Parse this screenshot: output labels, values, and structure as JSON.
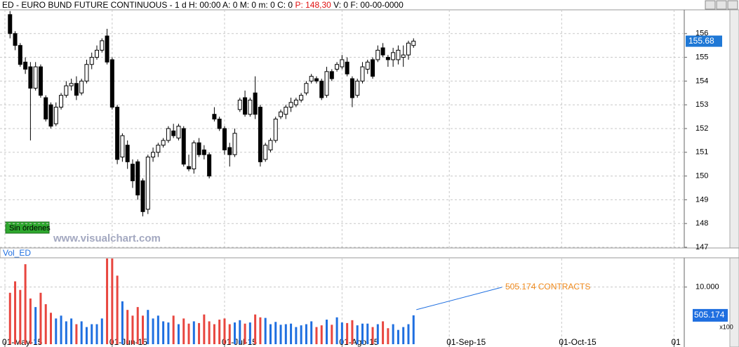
{
  "chart_data": [
    {
      "type": "candlestick",
      "title": "ED - EURO BUND FUTURE CONTINUOUS - 1 d H: 00:00 A: 0 M: 0 m: 0 C: 0",
      "title_price": "P: 148,30",
      "title_rest": "V: 0 F: 00-00-0000",
      "x": [
        1,
        2,
        3,
        4,
        5,
        6,
        7,
        8,
        9,
        10,
        11,
        12,
        13,
        14,
        15,
        16,
        17,
        18,
        19,
        20,
        21,
        22,
        23,
        24,
        25,
        26,
        27,
        28,
        29,
        30,
        31,
        32,
        33,
        34,
        35,
        36,
        37,
        38,
        39,
        40,
        41,
        42,
        43,
        44,
        45,
        46,
        47,
        48,
        49,
        50,
        51,
        52,
        53,
        54,
        55,
        56,
        57,
        58,
        59,
        60,
        61,
        62,
        63,
        64,
        65,
        66,
        67,
        68,
        69,
        70,
        71,
        72,
        73,
        74,
        75,
        76,
        77,
        78,
        79,
        80
      ],
      "open": [
        156.8,
        156.0,
        155.5,
        154.8,
        154.6,
        153.7,
        154.6,
        153.3,
        153.0,
        152.2,
        152.9,
        153.4,
        153.8,
        153.9,
        153.5,
        154.0,
        154.7,
        155.0,
        155.3,
        155.9,
        154.9,
        152.9,
        150.8,
        151.3,
        150.5,
        150.6,
        149.8,
        148.6,
        150.8,
        151.0,
        151.3,
        151.5,
        151.9,
        151.6,
        152.0,
        150.4,
        150.3,
        151.4,
        151.1,
        150.9,
        152.6,
        152.4,
        152.0,
        151.2,
        150.9,
        152.8,
        153.3,
        152.6,
        153.5,
        152.9,
        150.7,
        151.1,
        151.5,
        152.5,
        152.6,
        152.9,
        153.0,
        153.2,
        153.5,
        154.0,
        154.1,
        154.0,
        153.4,
        154.4,
        154.5,
        154.6,
        154.8,
        154.1,
        153.4,
        154.0,
        154.5,
        154.9,
        154.9,
        155.4,
        155.0,
        154.9,
        154.9,
        155.0,
        155.1,
        155.5
      ],
      "high": [
        156.95,
        156.1,
        155.6,
        155.0,
        154.8,
        154.8,
        154.7,
        153.4,
        153.1,
        153.1,
        153.5,
        154.0,
        154.1,
        154.2,
        154.1,
        154.9,
        155.2,
        155.5,
        155.8,
        156.2,
        155.0,
        153.0,
        151.8,
        151.5,
        150.7,
        150.7,
        149.9,
        150.9,
        151.2,
        151.4,
        151.6,
        152.1,
        152.2,
        152.2,
        152.1,
        150.9,
        151.5,
        151.6,
        151.3,
        151.0,
        152.9,
        152.5,
        152.1,
        151.4,
        152.0,
        153.3,
        153.6,
        153.3,
        154.2,
        153.0,
        151.4,
        151.6,
        152.5,
        152.8,
        153.0,
        153.3,
        153.3,
        153.5,
        154.0,
        154.3,
        154.2,
        154.1,
        154.6,
        154.5,
        154.8,
        155.1,
        155.0,
        154.2,
        154.1,
        154.8,
        154.9,
        155.0,
        155.5,
        155.6,
        155.1,
        155.4,
        155.5,
        155.5,
        155.7,
        155.8
      ],
      "low": [
        155.8,
        155.3,
        154.6,
        154.3,
        151.5,
        153.6,
        153.3,
        152.3,
        152.0,
        152.1,
        152.8,
        153.3,
        153.6,
        153.2,
        153.4,
        153.9,
        154.5,
        154.9,
        155.2,
        154.7,
        152.8,
        150.5,
        150.6,
        150.3,
        149.5,
        149.0,
        148.3,
        148.4,
        150.6,
        150.8,
        151.2,
        151.4,
        151.6,
        151.5,
        150.4,
        150.2,
        150.1,
        150.8,
        150.7,
        149.9,
        152.3,
        151.9,
        150.9,
        150.4,
        150.8,
        152.7,
        152.5,
        152.5,
        152.4,
        150.4,
        150.6,
        151.0,
        151.4,
        152.4,
        152.4,
        152.7,
        152.9,
        153.1,
        153.4,
        153.9,
        153.9,
        153.2,
        153.3,
        154.0,
        154.4,
        154.5,
        154.2,
        152.9,
        153.3,
        153.9,
        154.3,
        154.1,
        154.8,
        155.0,
        154.6,
        154.6,
        154.7,
        154.6,
        154.9,
        155.4
      ],
      "close": [
        156.0,
        155.5,
        154.7,
        154.5,
        153.7,
        154.6,
        153.4,
        152.4,
        152.1,
        152.9,
        153.4,
        153.8,
        153.9,
        153.4,
        154.0,
        154.7,
        155.0,
        155.3,
        155.7,
        154.8,
        152.9,
        150.7,
        151.7,
        150.6,
        149.8,
        149.2,
        148.5,
        150.8,
        151.0,
        151.3,
        151.5,
        152.0,
        151.7,
        152.1,
        150.5,
        150.3,
        151.4,
        150.9,
        150.9,
        150.0,
        152.4,
        152.0,
        151.1,
        150.9,
        151.8,
        153.2,
        152.6,
        153.2,
        152.6,
        150.6,
        151.3,
        151.5,
        152.4,
        152.7,
        152.9,
        153.1,
        153.2,
        153.4,
        153.9,
        154.2,
        154.0,
        153.3,
        154.4,
        154.1,
        154.7,
        154.9,
        154.3,
        153.3,
        154.0,
        154.6,
        154.8,
        154.2,
        155.3,
        155.1,
        154.9,
        155.2,
        155.3,
        155.1,
        155.6,
        155.68
      ],
      "xlim": [
        0,
        133
      ],
      "xticks": [
        {
          "value": 0,
          "label": "01-May-15"
        },
        {
          "value": 21,
          "label": "01-Jun-15"
        },
        {
          "value": 43,
          "label": "01-Jul-15"
        },
        {
          "value": 66,
          "label": "01-Ago-15"
        },
        {
          "value": 87,
          "label": "01-Sep-15"
        },
        {
          "value": 109,
          "label": "01-Oct-15"
        },
        {
          "value": 131,
          "label": "01"
        }
      ],
      "ylim": [
        147,
        157
      ],
      "yticks": [
        147,
        148,
        149,
        150,
        151,
        152,
        153,
        154,
        155,
        156
      ],
      "grid": true,
      "up_color": "#ffffff",
      "down_color": "#000000",
      "last_color": "#1f78d6"
    },
    {
      "type": "bar",
      "title": "Vol_ED",
      "values": [
        9000,
        11000,
        9500,
        14000,
        8000,
        6500,
        9000,
        7000,
        5500,
        4500,
        5000,
        4000,
        4500,
        3500,
        4000,
        3000,
        3500,
        3500,
        4500,
        15000,
        15000,
        12000,
        7500,
        6000,
        5000,
        6500,
        5000,
        6000,
        4500,
        5000,
        4000,
        3800,
        5000,
        3500,
        4500,
        3600,
        4000,
        3700,
        5200,
        4000,
        3500,
        4300,
        4500,
        3500,
        3800,
        4200,
        3600,
        3800,
        5200,
        4700,
        4600,
        3500,
        3900,
        3400,
        3500,
        3600,
        3000,
        3300,
        3500,
        4000,
        3000,
        3300,
        4300,
        3400,
        4700,
        3800,
        3700,
        4200,
        3300,
        3600,
        3600,
        3000,
        3500,
        4000,
        2800,
        3500,
        2500,
        3000,
        3500,
        5051.74
      ],
      "last_value_label": "505.174",
      "annotation": "505.174 CONTRACTS",
      "scale_label": "x100",
      "ylim": [
        0,
        15000
      ],
      "yticks": [
        {
          "value": 10000,
          "label": "10.000"
        }
      ],
      "grid": true,
      "up_color": "#1f6fe0",
      "down_color": "#e8463f",
      "annotation_color": "#f08a1c"
    }
  ],
  "order_status": "Sin órdenes",
  "watermark": "www.visualchart.com"
}
